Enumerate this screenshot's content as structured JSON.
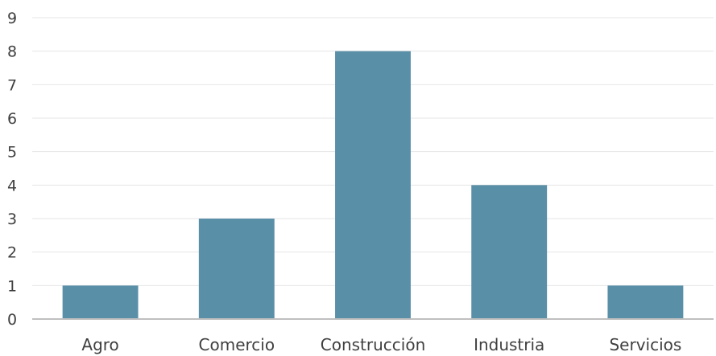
{
  "chart_data": {
    "type": "bar",
    "categories": [
      "Agro",
      "Comercio",
      "Construcción",
      "Industria",
      "Servicios"
    ],
    "values": [
      1,
      3,
      8,
      4,
      1
    ],
    "title": "",
    "xlabel": "",
    "ylabel": "",
    "ylim": [
      0,
      9
    ],
    "yticks": [
      "0",
      "1",
      "2",
      "3",
      "4",
      "5",
      "6",
      "7",
      "8",
      "9"
    ],
    "grid": true,
    "legend": "none",
    "bar_color": "#5a8fa8",
    "grid_color": "#e6e6e6",
    "axis_color": "#bfbfbf",
    "text_color": "#404040"
  }
}
